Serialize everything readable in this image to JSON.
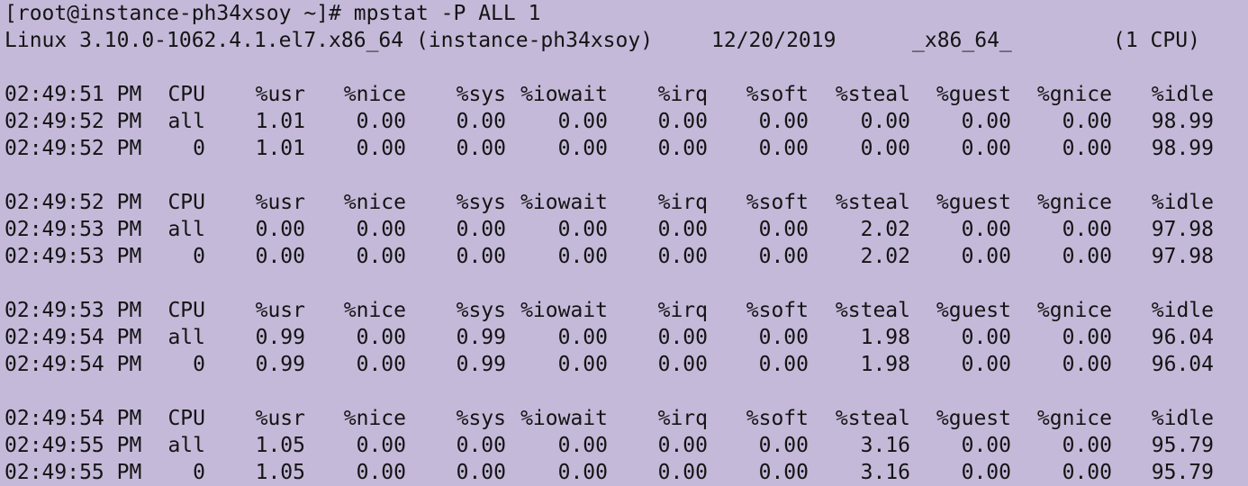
{
  "terminal": {
    "prompt_line": "[root@instance-ph34xsoy ~]# mpstat -P ALL 1",
    "sysinfo": {
      "kernel": "Linux 3.10.0-1062.4.1.el7.x86_64 (instance-ph34xsoy)",
      "date": "12/20/2019",
      "arch": "_x86_64_",
      "cpus": "(1 CPU)"
    },
    "columns": [
      "CPU",
      "%usr",
      "%nice",
      "%sys",
      "%iowait",
      "%irq",
      "%soft",
      "%steal",
      "%guest",
      "%gnice",
      "%idle"
    ],
    "blocks": [
      {
        "header_time": "02:49:51 PM",
        "rows": [
          {
            "time": "02:49:52 PM",
            "vals": [
              "all",
              "1.01",
              "0.00",
              "0.00",
              "0.00",
              "0.00",
              "0.00",
              "0.00",
              "0.00",
              "0.00",
              "98.99"
            ]
          },
          {
            "time": "02:49:52 PM",
            "vals": [
              "0",
              "1.01",
              "0.00",
              "0.00",
              "0.00",
              "0.00",
              "0.00",
              "0.00",
              "0.00",
              "0.00",
              "98.99"
            ]
          }
        ]
      },
      {
        "header_time": "02:49:52 PM",
        "rows": [
          {
            "time": "02:49:53 PM",
            "vals": [
              "all",
              "0.00",
              "0.00",
              "0.00",
              "0.00",
              "0.00",
              "0.00",
              "2.02",
              "0.00",
              "0.00",
              "97.98"
            ]
          },
          {
            "time": "02:49:53 PM",
            "vals": [
              "0",
              "0.00",
              "0.00",
              "0.00",
              "0.00",
              "0.00",
              "0.00",
              "2.02",
              "0.00",
              "0.00",
              "97.98"
            ]
          }
        ]
      },
      {
        "header_time": "02:49:53 PM",
        "rows": [
          {
            "time": "02:49:54 PM",
            "vals": [
              "all",
              "0.99",
              "0.00",
              "0.99",
              "0.00",
              "0.00",
              "0.00",
              "1.98",
              "0.00",
              "0.00",
              "96.04"
            ]
          },
          {
            "time": "02:49:54 PM",
            "vals": [
              "0",
              "0.99",
              "0.00",
              "0.99",
              "0.00",
              "0.00",
              "0.00",
              "1.98",
              "0.00",
              "0.00",
              "96.04"
            ]
          }
        ]
      },
      {
        "header_time": "02:49:54 PM",
        "rows": [
          {
            "time": "02:49:55 PM",
            "vals": [
              "all",
              "1.05",
              "0.00",
              "0.00",
              "0.00",
              "0.00",
              "0.00",
              "3.16",
              "0.00",
              "0.00",
              "95.79"
            ]
          },
          {
            "time": "02:49:55 PM",
            "vals": [
              "0",
              "1.05",
              "0.00",
              "0.00",
              "0.00",
              "0.00",
              "0.00",
              "3.16",
              "0.00",
              "0.00",
              "95.79"
            ]
          }
        ]
      }
    ],
    "colors": {
      "background": "#c5b9d9",
      "text": "#141414"
    }
  }
}
